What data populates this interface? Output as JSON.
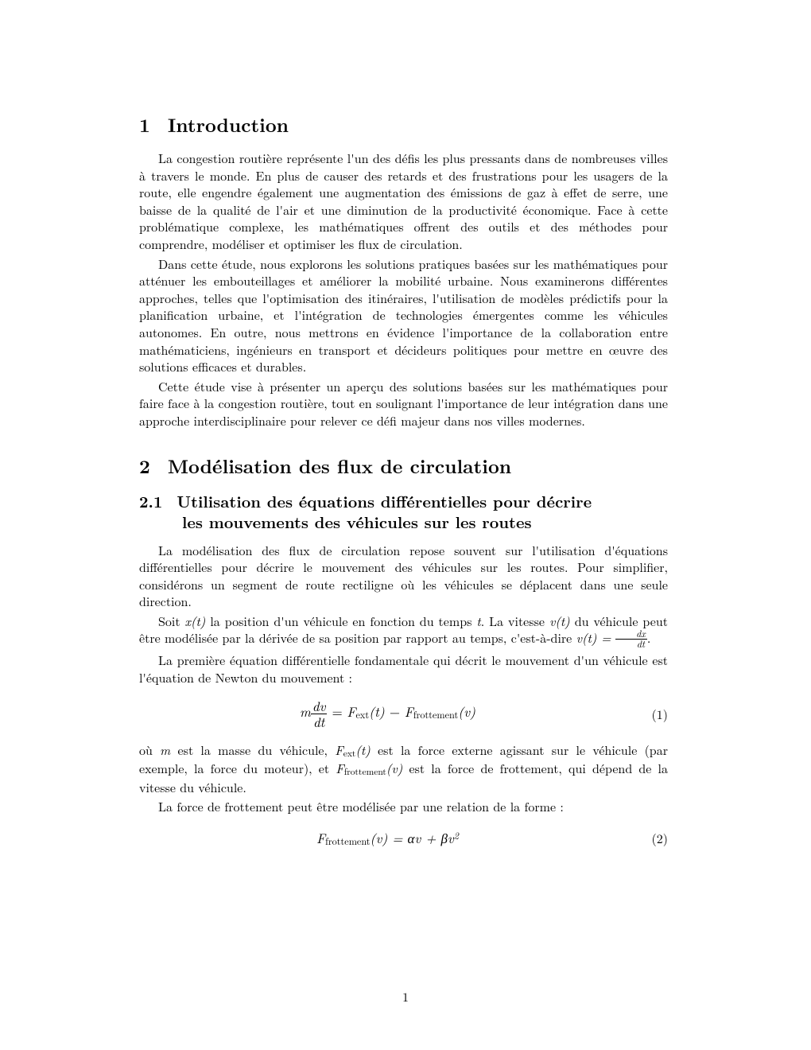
{
  "sections": {
    "s1": {
      "num": "1",
      "title": "Introduction"
    },
    "s2": {
      "num": "2",
      "title": "Modélisation des flux de circulation"
    },
    "s2_1": {
      "num": "2.1",
      "title_l1": "Utilisation des équations différentielles pour décrire",
      "title_l2": "les mouvements des véhicules sur les routes"
    }
  },
  "para": {
    "p1": "La congestion routière représente l'un des défis les plus pressants dans de nombreuses villes à travers le monde. En plus de causer des retards et des frustrations pour les usagers de la route, elle engendre également une augmentation des émissions de gaz à effet de serre, une baisse de la qualité de l'air et une diminution de la productivité économique. Face à cette problématique complexe, les mathématiques offrent des outils et des méthodes pour comprendre, modéliser et optimiser les flux de circulation.",
    "p2": "Dans cette étude, nous explorons les solutions pratiques basées sur les mathématiques pour atténuer les embouteillages et améliorer la mobilité urbaine. Nous examinerons différentes approches, telles que l'optimisation des itinéraires, l'utilisation de modèles prédictifs pour la planification urbaine, et l'intégration de technologies émergentes comme les véhicules autonomes. En outre, nous mettrons en évidence l'importance de la collaboration entre mathématiciens, ingénieurs en transport et décideurs politiques pour mettre en œuvre des solutions efficaces et durables.",
    "p3": "Cette étude vise à présenter un aperçu des solutions basées sur les mathématiques pour faire face à la congestion routière, tout en soulignant l'importance de leur intégration dans une approche interdisciplinaire pour relever ce défi majeur dans nos villes modernes.",
    "p4": "La modélisation des flux de circulation repose souvent sur l'utilisation d'équations différentielles pour décrire le mouvement des véhicules sur les routes. Pour simplifier, considérons un segment de route rectiligne où les véhicules se déplacent dans une seule direction.",
    "p6": "La première équation différentielle fondamentale qui décrit le mouvement d'un véhicule est l'équation de Newton du mouvement :",
    "p8": "La force de frottement peut être modélisée par une relation de la forme :"
  },
  "inline": {
    "p5_a": "Soit ",
    "p5_b": " la position d'un véhicule en fonction du temps ",
    "p5_c": ". La vitesse ",
    "p5_d": " du véhicule peut être modélisée par la dérivée de sa position par rapport au temps, c'est-à-dire ",
    "p5_e": ".",
    "p7_a": "où ",
    "p7_b": " est la masse du véhicule, ",
    "p7_c": " est la force externe agissant sur le véhicule (par exemple, la force du moteur), et ",
    "p7_d": " est la force de frottement, qui dépend de la vitesse du véhicule."
  },
  "math": {
    "x_t": "x(t)",
    "t": "t",
    "v_t": "v(t)",
    "m": "m",
    "eq_vt": "v(t) = ",
    "Fext": "F",
    "Fext_sub": "ext",
    "Ffrot": "F",
    "Ffrot_sub": "frottement",
    "of_t": "(t)",
    "of_v": "(v)",
    "dv": "dv",
    "dt": "dt",
    "dx": "dx",
    "eq1_num": "(1)",
    "eq2_num": "(2)",
    "eq2_rhs": " = αv + βv",
    "sq": "2"
  },
  "page_number": "1"
}
